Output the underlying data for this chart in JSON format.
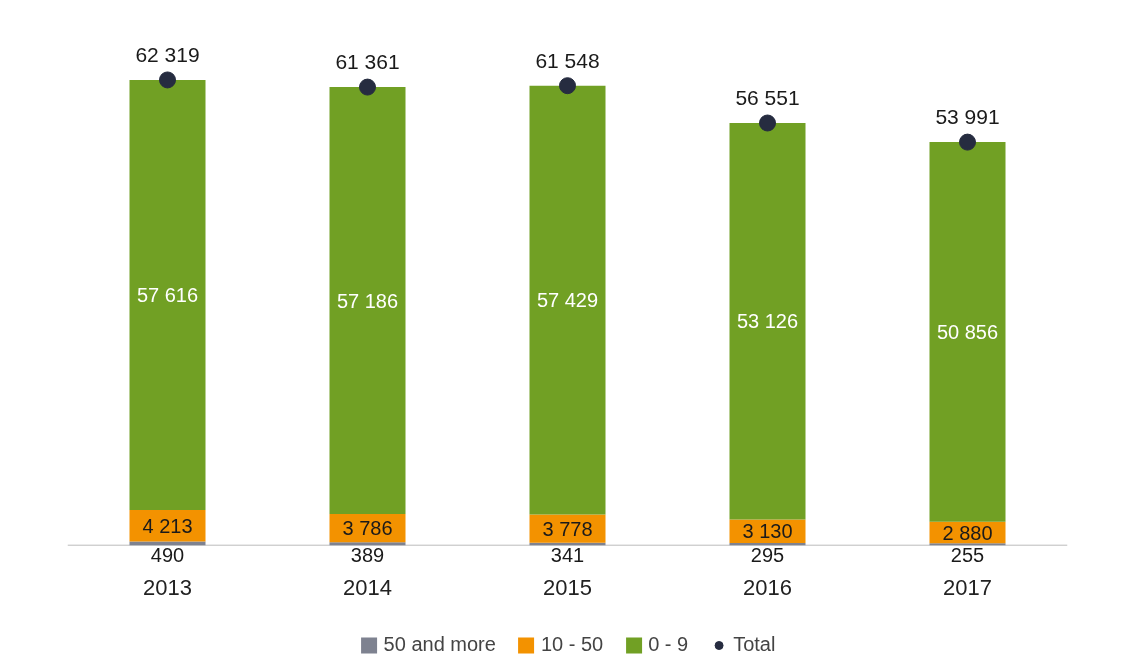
{
  "chart_data": {
    "type": "bar",
    "stacked": true,
    "categories": [
      "2013",
      "2014",
      "2015",
      "2016",
      "2017"
    ],
    "series": [
      {
        "name": "50 and more",
        "color": "#7e8290",
        "values": [
          490,
          389,
          341,
          295,
          255
        ]
      },
      {
        "name": "10 - 50",
        "color": "#f39200",
        "values": [
          4213,
          3786,
          3778,
          3130,
          2880
        ]
      },
      {
        "name": "0 - 9",
        "color": "#71a024",
        "values": [
          57616,
          57186,
          57429,
          53126,
          50856
        ]
      },
      {
        "name": "Total",
        "type": "scatter",
        "color": "#262c40",
        "values": [
          62319,
          61361,
          61548,
          56551,
          53991
        ]
      }
    ],
    "data_labels": true,
    "legend": "bottom",
    "tick_labels": "x",
    "grid": false,
    "marker": "circle"
  }
}
